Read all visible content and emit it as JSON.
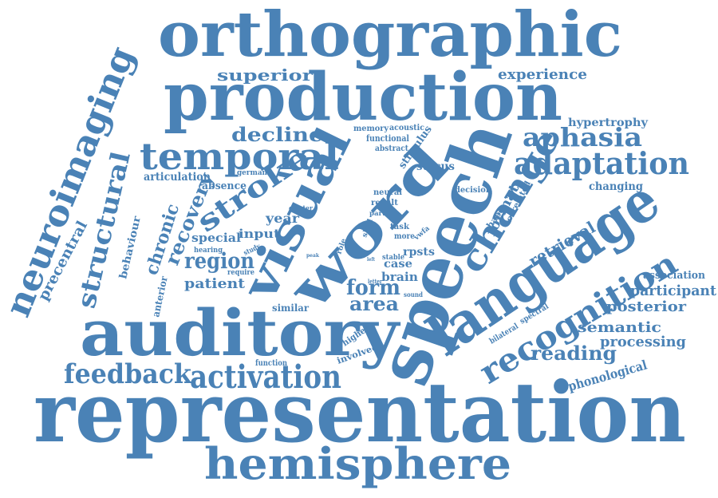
{
  "cloud": {
    "color": "#4a82b6",
    "words": [
      {
        "text": "representation"
      },
      {
        "text": "orthographic"
      },
      {
        "text": "production"
      },
      {
        "text": "auditory"
      },
      {
        "text": "speech"
      },
      {
        "text": "language"
      },
      {
        "text": "word"
      },
      {
        "text": "visual"
      },
      {
        "text": "hemisphere"
      },
      {
        "text": "neuroimaging"
      },
      {
        "text": "temporal"
      },
      {
        "text": "stroke"
      },
      {
        "text": "recognition"
      },
      {
        "text": "change"
      },
      {
        "text": "activation"
      },
      {
        "text": "adaptation"
      },
      {
        "text": "structural"
      },
      {
        "text": "feedback"
      },
      {
        "text": "aphasia"
      },
      {
        "text": "decline"
      },
      {
        "text": "superior"
      },
      {
        "text": "recovery"
      },
      {
        "text": "region"
      },
      {
        "text": "form"
      },
      {
        "text": "area"
      },
      {
        "text": "reading"
      },
      {
        "text": "semantic"
      },
      {
        "text": "processing"
      },
      {
        "text": "participant"
      },
      {
        "text": "posterior"
      },
      {
        "text": "experience"
      },
      {
        "text": "chronic"
      },
      {
        "text": "precentral"
      },
      {
        "text": "patient"
      },
      {
        "text": "retrieval"
      },
      {
        "text": "format"
      },
      {
        "text": "hypertrophy"
      },
      {
        "text": "changing"
      },
      {
        "text": "association"
      },
      {
        "text": "phonological"
      },
      {
        "text": "sulcus"
      },
      {
        "text": "special"
      },
      {
        "text": "input"
      },
      {
        "text": "year"
      },
      {
        "text": "articulation"
      },
      {
        "text": "absence"
      },
      {
        "text": "brain"
      },
      {
        "text": "case"
      },
      {
        "text": "rpsts"
      },
      {
        "text": "similar"
      },
      {
        "text": "behaviour"
      },
      {
        "text": "anterior"
      },
      {
        "text": "stimulus"
      },
      {
        "text": "memory"
      },
      {
        "text": "acoustic"
      },
      {
        "text": "functional"
      },
      {
        "text": "abstract"
      },
      {
        "text": "german"
      },
      {
        "text": "decision"
      },
      {
        "text": "neural"
      },
      {
        "text": "result"
      },
      {
        "text": "part"
      },
      {
        "text": "skill"
      },
      {
        "text": "task"
      },
      {
        "text": "more"
      },
      {
        "text": "vwfa"
      },
      {
        "text": "shape"
      },
      {
        "text": "correlated"
      },
      {
        "text": "cluster"
      },
      {
        "text": "study"
      },
      {
        "text": "hearing"
      },
      {
        "text": "require"
      },
      {
        "text": "role"
      },
      {
        "text": "peak"
      },
      {
        "text": "root"
      },
      {
        "text": "left"
      },
      {
        "text": "letter"
      },
      {
        "text": "stable"
      },
      {
        "text": "sound"
      },
      {
        "text": "higher"
      },
      {
        "text": "involved"
      },
      {
        "text": "function"
      },
      {
        "text": "bilateral"
      },
      {
        "text": "spectral"
      }
    ]
  }
}
